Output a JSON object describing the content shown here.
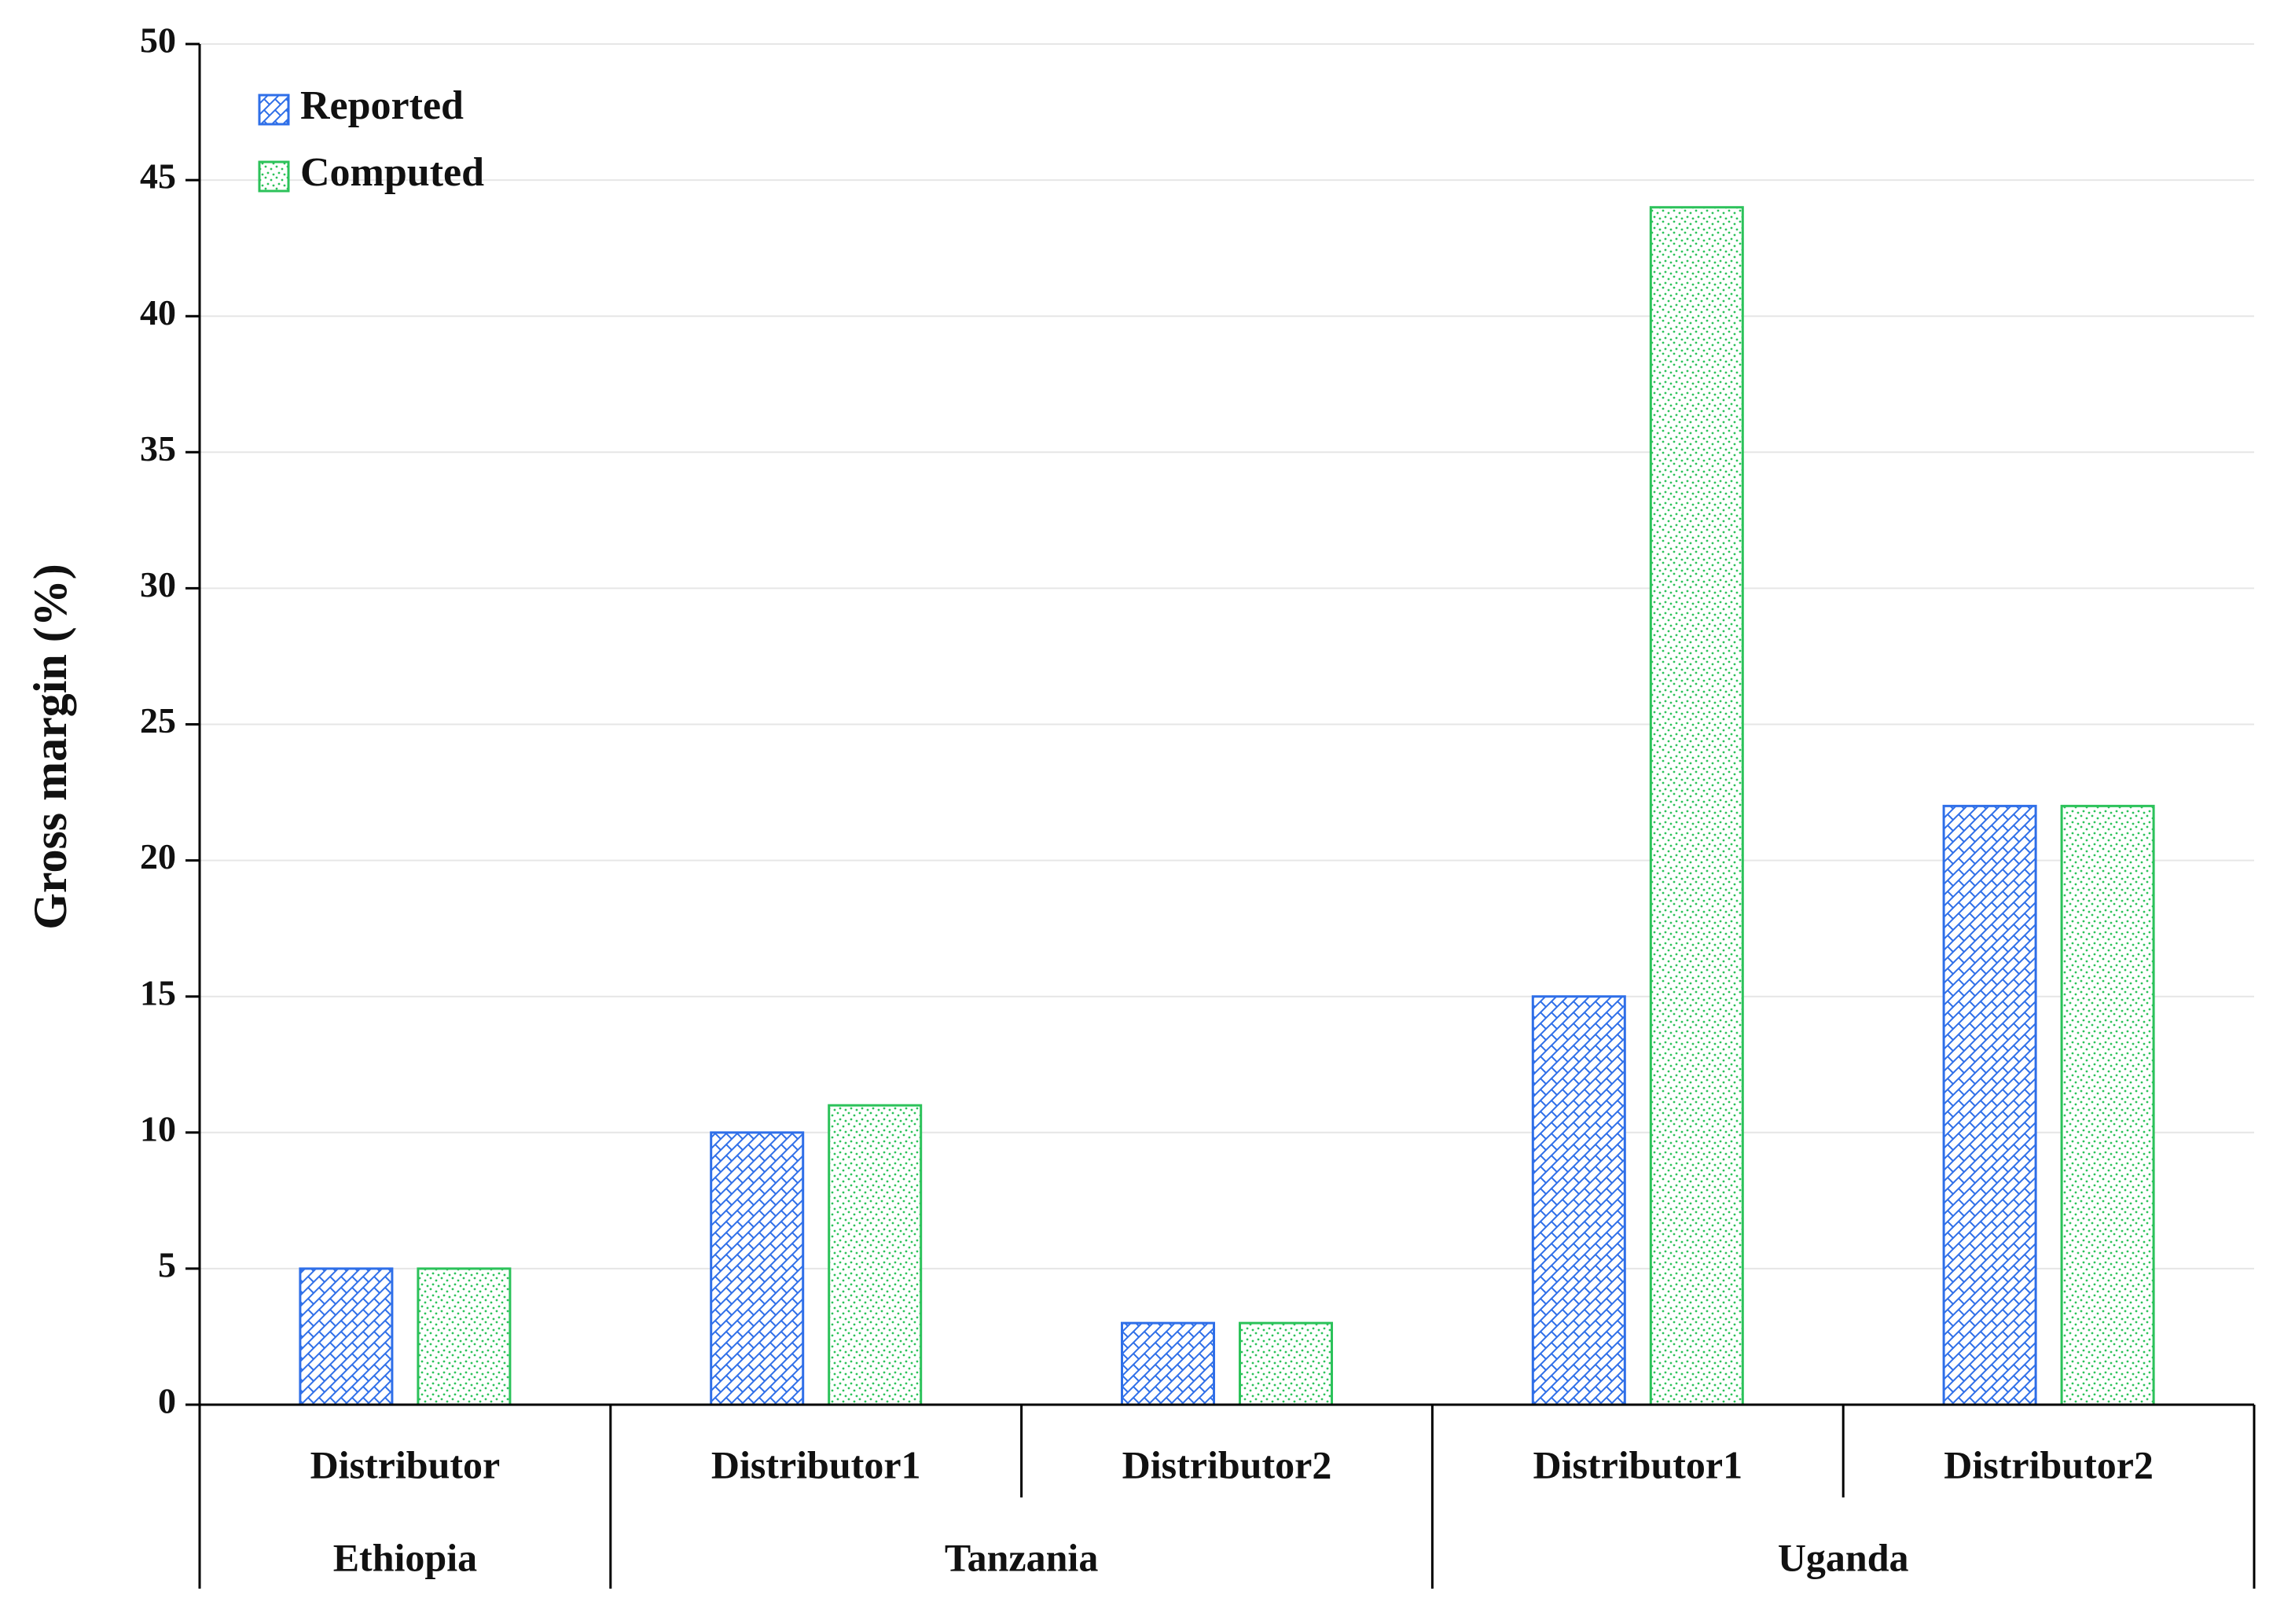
{
  "chart_data": {
    "type": "bar",
    "y_label": "Gross margin (%)",
    "groups": [
      {
        "name": "Ethiopia",
        "categories": [
          "Distributor"
        ]
      },
      {
        "name": "Tanzania",
        "categories": [
          "Distributor1",
          "Distributor2"
        ]
      },
      {
        "name": "Uganda",
        "categories": [
          "Distributor1",
          "Distributor2"
        ]
      }
    ],
    "series": [
      {
        "name": "Reported",
        "color": "#2f6fe8",
        "pattern": "crosshatch",
        "values": [
          5,
          10,
          3,
          15,
          22
        ]
      },
      {
        "name": "Computed",
        "color": "#2cc25a",
        "pattern": "dots",
        "values": [
          5,
          11,
          3,
          44,
          22
        ]
      }
    ],
    "ylim": [
      0,
      50
    ],
    "yticks": [
      0,
      5,
      10,
      15,
      20,
      25,
      30,
      35,
      40,
      45,
      50
    ],
    "grid": true,
    "legend": "upper left"
  }
}
